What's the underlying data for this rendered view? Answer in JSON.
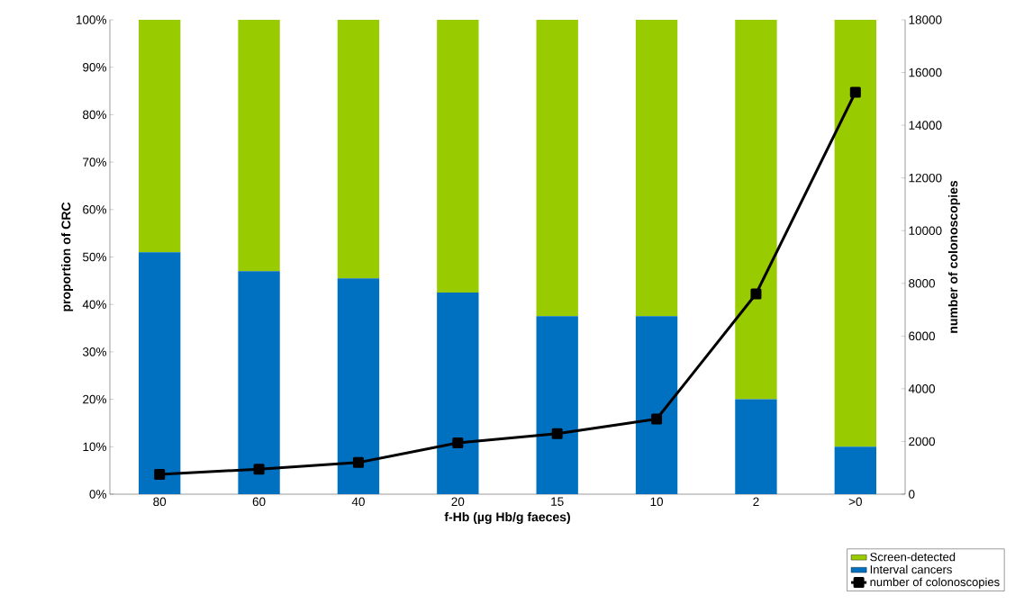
{
  "chart_data": {
    "type": "bar",
    "stacked": true,
    "xlabel": "f-Hb (µg Hb/g faeces)",
    "ylabel": "proportion of CRC",
    "y2label": "number of colonoscopies",
    "categories": [
      "80",
      "60",
      "40",
      "20",
      "15",
      "10",
      "2",
      ">0"
    ],
    "series": [
      {
        "name": "Interval cancers",
        "type": "bar",
        "color": "#0070c0",
        "values": [
          51,
          47,
          45.5,
          42.5,
          37.5,
          37.5,
          20,
          10
        ]
      },
      {
        "name": "Screen-detected",
        "type": "bar",
        "color": "#99cc00",
        "values": [
          49,
          53,
          54.5,
          57.5,
          62.5,
          62.5,
          80,
          90
        ]
      },
      {
        "name": "number of colonoscopies",
        "type": "line",
        "axis": "y2",
        "color": "#000000",
        "values": [
          750,
          950,
          1200,
          1950,
          2300,
          2850,
          7600,
          15250
        ]
      }
    ],
    "marker": "square",
    "ylim": [
      0,
      100
    ],
    "yticks": [
      {
        "value": 0,
        "label": "0%"
      },
      {
        "value": 10,
        "label": "10%"
      },
      {
        "value": 20,
        "label": "20%"
      },
      {
        "value": 30,
        "label": "30%"
      },
      {
        "value": 40,
        "label": "40%"
      },
      {
        "value": 50,
        "label": "50%"
      },
      {
        "value": 60,
        "label": "60%"
      },
      {
        "value": 70,
        "label": "70%"
      },
      {
        "value": 80,
        "label": "80%"
      },
      {
        "value": 90,
        "label": "90%"
      },
      {
        "value": 100,
        "label": "100%"
      }
    ],
    "y2lim": [
      0,
      18000
    ],
    "y2ticks": [
      0,
      2000,
      4000,
      6000,
      8000,
      10000,
      12000,
      14000,
      16000,
      18000
    ],
    "legend": "bottom right"
  }
}
